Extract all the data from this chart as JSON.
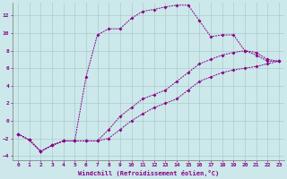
{
  "xlabel": "Windchill (Refroidissement éolien,°C)",
  "background_color": "#cce8ea",
  "grid_color": "#aacccc",
  "line_color": "#880088",
  "xlim": [
    -0.5,
    23.5
  ],
  "ylim": [
    -4.5,
    13.5
  ],
  "xticks": [
    0,
    1,
    2,
    3,
    4,
    5,
    6,
    7,
    8,
    9,
    10,
    11,
    12,
    13,
    14,
    15,
    16,
    17,
    18,
    19,
    20,
    21,
    22,
    23
  ],
  "yticks": [
    -4,
    -2,
    0,
    2,
    4,
    6,
    8,
    10,
    12
  ],
  "lines": [
    {
      "x": [
        0,
        1,
        2,
        3,
        4,
        5,
        6,
        7,
        8,
        9,
        10,
        11,
        12,
        13,
        14,
        15,
        16,
        17,
        18,
        19,
        20,
        21,
        22,
        23
      ],
      "y": [
        -1.5,
        -2.2,
        -3.5,
        -2.8,
        -2.3,
        -2.3,
        5.0,
        9.8,
        10.5,
        10.5,
        11.7,
        12.5,
        12.7,
        13.0,
        13.2,
        13.2,
        11.4,
        9.6,
        9.8,
        9.8,
        8.0,
        7.5,
        6.8,
        6.8
      ]
    },
    {
      "x": [
        0,
        1,
        2,
        3,
        4,
        5,
        6,
        7,
        8,
        9,
        10,
        11,
        12,
        13,
        14,
        15,
        16,
        17,
        18,
        19,
        20,
        21,
        22,
        23
      ],
      "y": [
        -1.5,
        -2.2,
        -3.5,
        -2.8,
        -2.3,
        -2.3,
        -2.3,
        -2.3,
        -1.0,
        0.5,
        1.5,
        2.5,
        3.0,
        3.5,
        4.5,
        5.5,
        6.5,
        7.0,
        7.5,
        7.8,
        8.0,
        7.8,
        7.0,
        6.8
      ]
    },
    {
      "x": [
        0,
        1,
        2,
        3,
        4,
        5,
        6,
        7,
        8,
        9,
        10,
        11,
        12,
        13,
        14,
        15,
        16,
        17,
        18,
        19,
        20,
        21,
        22,
        23
      ],
      "y": [
        -1.5,
        -2.2,
        -3.5,
        -2.8,
        -2.3,
        -2.3,
        -2.3,
        -2.3,
        -2.0,
        -1.0,
        0.0,
        0.8,
        1.5,
        2.0,
        2.5,
        3.5,
        4.5,
        5.0,
        5.5,
        5.8,
        6.0,
        6.2,
        6.5,
        6.8
      ]
    }
  ]
}
